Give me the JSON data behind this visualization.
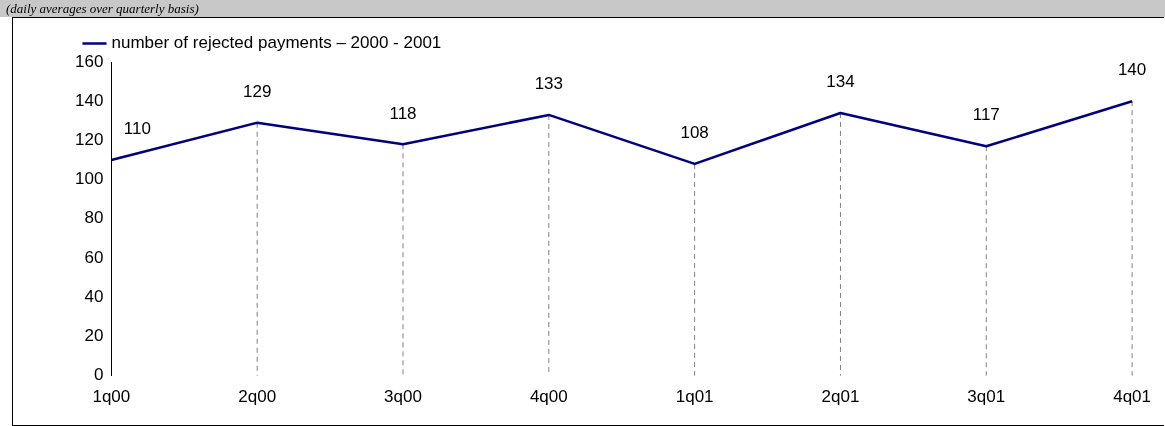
{
  "chart_data": {
    "type": "line",
    "subtitle": "(daily averages over quarterly basis)",
    "categories": [
      "1q00",
      "2q00",
      "3q00",
      "4q00",
      "1q01",
      "2q01",
      "3q01",
      "4q01"
    ],
    "series": [
      {
        "name": "number of rejected payments – 2000 - 2001",
        "color": "#000080",
        "values": [
          110,
          129,
          118,
          133,
          108,
          134,
          117,
          140
        ]
      }
    ],
    "ylim": [
      0,
      160
    ],
    "yticks": [
      0,
      20,
      40,
      60,
      80,
      100,
      120,
      140,
      160
    ],
    "grid": "x",
    "legend": "top left",
    "marker": "none",
    "line_style": "solid",
    "data_labels": true
  }
}
